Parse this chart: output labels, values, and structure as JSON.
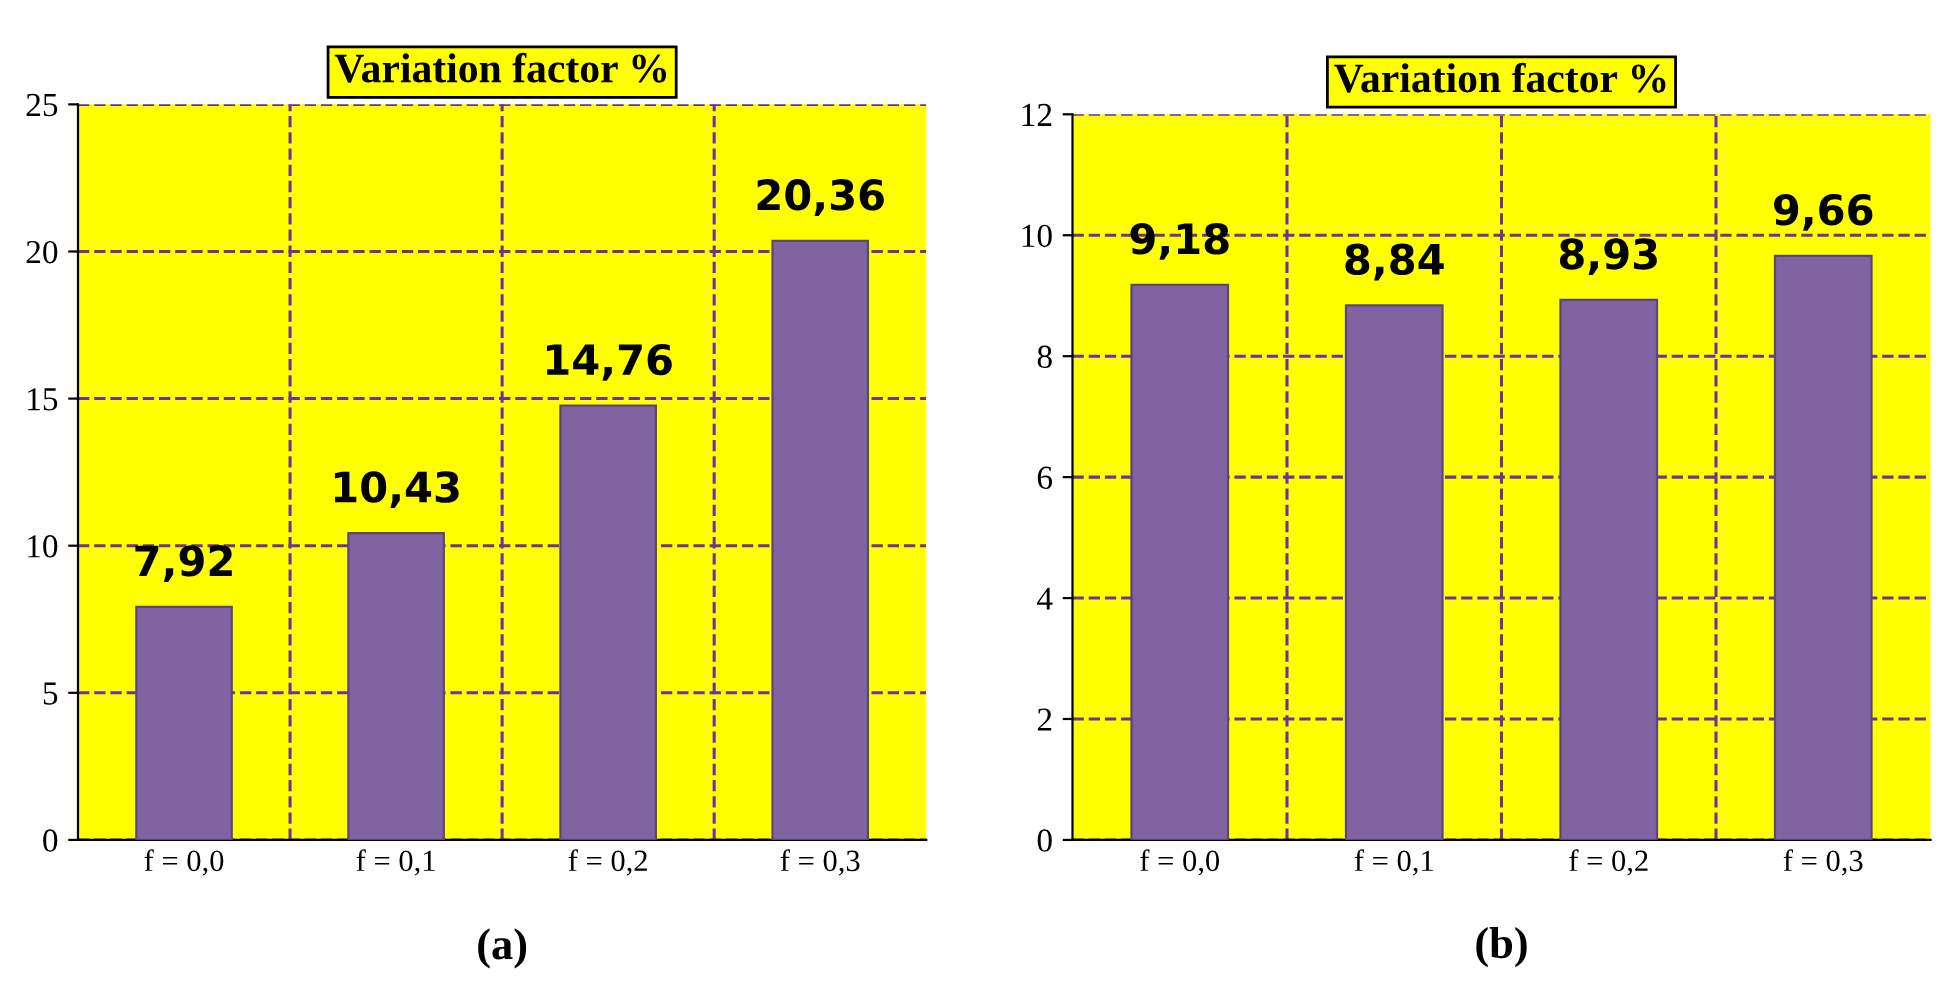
{
  "chart_data": [
    {
      "type": "bar",
      "title": "Variation factor %",
      "categories": [
        "f = 0,0",
        "f = 0,1",
        "f = 0,2",
        "f = 0,3"
      ],
      "values": [
        7.92,
        10.43,
        14.76,
        20.36
      ],
      "value_labels": [
        "7,92",
        "10,43",
        "14,76",
        "20,36"
      ],
      "color": "#8064a2",
      "ylim": [
        0,
        25
      ],
      "yticks": [
        0,
        5,
        10,
        15,
        20,
        25
      ],
      "grid": true,
      "annotations": [
        "(a)"
      ]
    },
    {
      "type": "bar",
      "title": "Variation factor %",
      "categories": [
        "f = 0,0",
        "f = 0,1",
        "f = 0,2",
        "f = 0,3"
      ],
      "values": [
        9.18,
        8.84,
        8.93,
        9.66
      ],
      "value_labels": [
        "9,18",
        "8,84",
        "8,93",
        "9,66"
      ],
      "color": "#8064a2",
      "ylim": [
        0,
        12
      ],
      "yticks": [
        0,
        2,
        4,
        6,
        8,
        10,
        12
      ],
      "grid": true,
      "annotations": [
        "(b)"
      ]
    }
  ]
}
